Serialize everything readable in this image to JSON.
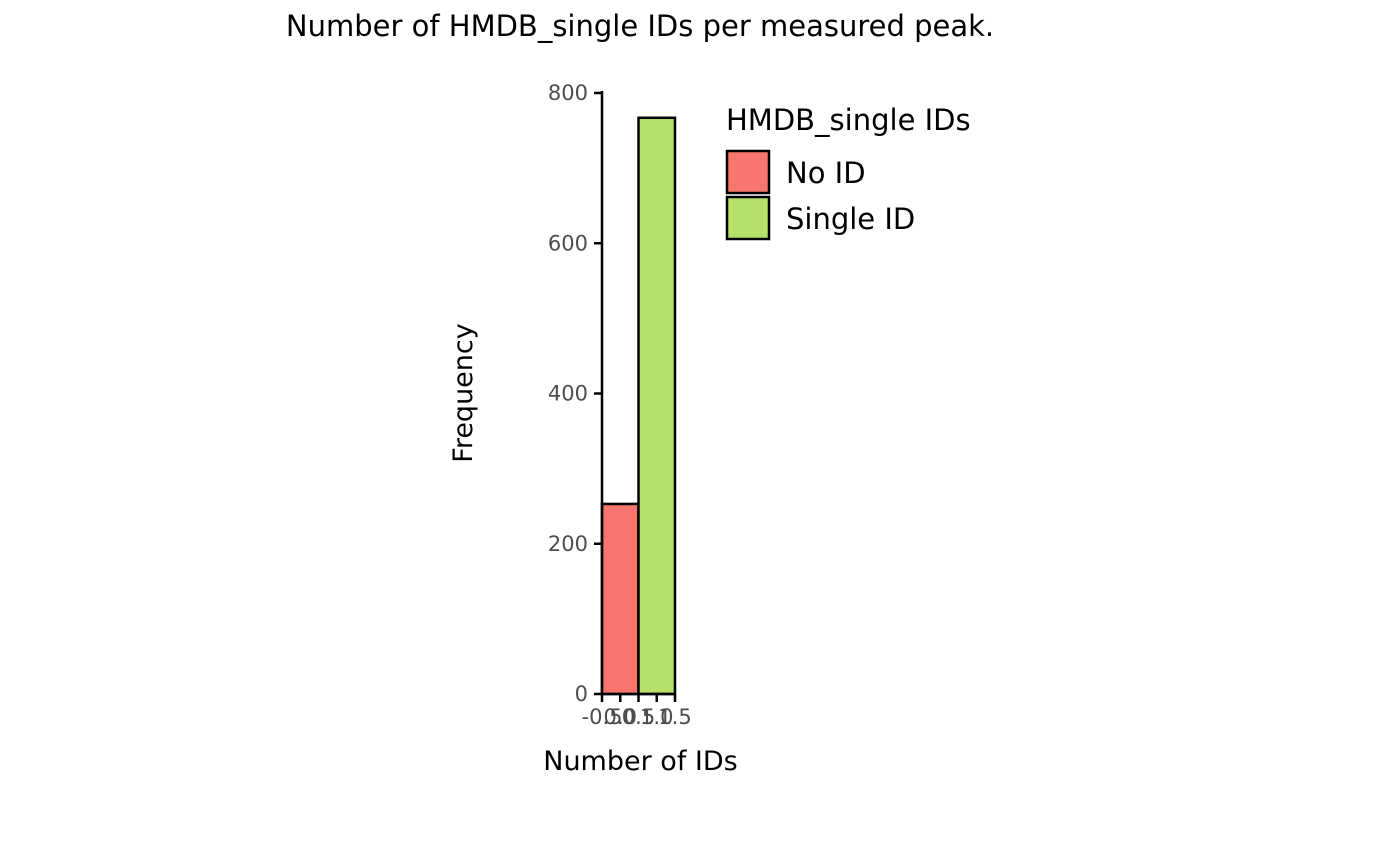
{
  "chart_data": {
    "type": "bar",
    "title": "Number of HMDB_single IDs per measured peak.",
    "xlabel": "Number of IDs",
    "ylabel": "Frequency",
    "bins": [
      {
        "x0": -0.5,
        "x1": 0.5,
        "value": 253,
        "group": "No ID"
      },
      {
        "x0": 0.5,
        "x1": 1.5,
        "value": 767,
        "group": "Single ID"
      }
    ],
    "xlim": [
      -0.5,
      1.5
    ],
    "ylim": [
      0,
      800
    ],
    "x_ticks": [
      "-0.5",
      "0.0",
      "0.5",
      "1.0",
      "1.5"
    ],
    "x_tick_values": [
      -0.5,
      0.0,
      0.5,
      1.0,
      1.5
    ],
    "y_ticks": [
      "0",
      "200",
      "400",
      "600",
      "800"
    ],
    "y_tick_values": [
      0,
      200,
      400,
      600,
      800
    ],
    "grid": false,
    "legend": {
      "title": "HMDB_single IDs",
      "position": "right",
      "items": [
        {
          "label": "No ID",
          "color": "#F8766D"
        },
        {
          "label": "Single ID",
          "color": "#B5E06A"
        }
      ]
    }
  }
}
